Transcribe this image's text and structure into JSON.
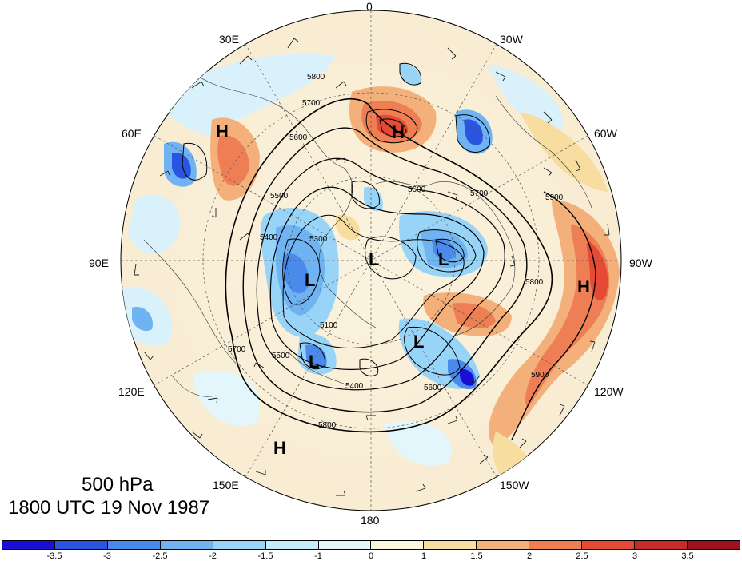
{
  "panel": {
    "level_label": "500 hPa",
    "time_label": "1800 UTC 19 Nov 1987"
  },
  "map": {
    "projection": "north-polar-stereographic",
    "longitude_labels": [
      "0",
      "30W",
      "60W",
      "90W",
      "120W",
      "150W",
      "180",
      "150E",
      "120E",
      "90E",
      "60E",
      "30E"
    ],
    "height_contour_labels": [
      "5800",
      "5700",
      "5600",
      "5500",
      "5400",
      "5300",
      "5100",
      "5900",
      "5600",
      "5700",
      "5800",
      "5900",
      "5400",
      "5500",
      "5600",
      "5700",
      "5800"
    ],
    "high_markers": [
      "H",
      "H",
      "H",
      "H"
    ],
    "low_markers": [
      "L",
      "L",
      "L",
      "L",
      "L"
    ],
    "features": [
      "wind-barbs",
      "coastlines",
      "height-contours",
      "anomaly-shading"
    ]
  },
  "colorbar": {
    "labels": [
      "-3.5",
      "-3",
      "-2.5",
      "-2",
      "-1.5",
      "-1",
      "0",
      "1",
      "1.5",
      "2",
      "2.5",
      "3",
      "3.5"
    ],
    "colors": [
      "#1a0fd6",
      "#2a55e0",
      "#4a8aea",
      "#6fb3f2",
      "#98d4f8",
      "#c4ecfb",
      "#e2f6fb",
      "#fbf6e0",
      "#f7dea0",
      "#f4b07a",
      "#ee7f55",
      "#e44a35",
      "#c82c2a",
      "#a0101e"
    ]
  }
}
